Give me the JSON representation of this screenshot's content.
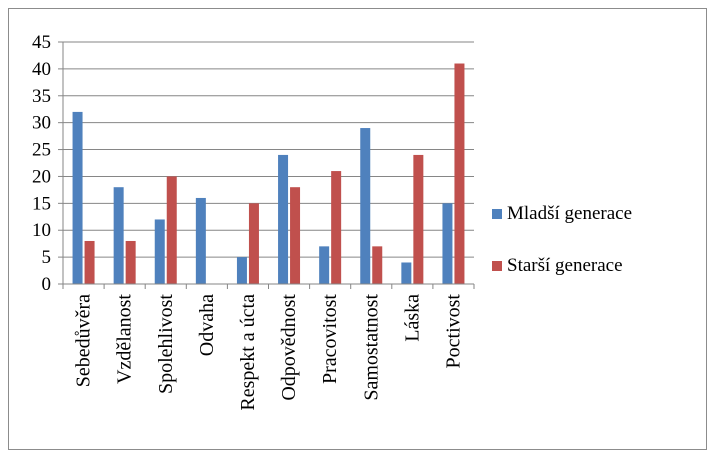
{
  "chart_data": {
    "type": "bar",
    "categories": [
      "Sebedůvěra",
      "Vzdělanost",
      "Spolehlivost",
      "Odvaha",
      "Respekt a úcta",
      "Odpovědnost",
      "Pracovitost",
      "Samostatnost",
      "Láska",
      "Poctivost"
    ],
    "series": [
      {
        "name": "Mladší generace",
        "color": "#4f81bd",
        "values": [
          32,
          18,
          12,
          16,
          5,
          24,
          7,
          29,
          4,
          15
        ]
      },
      {
        "name": "Starší generace",
        "color": "#c0504d",
        "values": [
          8,
          8,
          20,
          0,
          15,
          18,
          21,
          7,
          24,
          41
        ]
      }
    ],
    "yticks": [
      0,
      5,
      10,
      15,
      20,
      25,
      30,
      35,
      40,
      45
    ],
    "ylim": [
      0,
      45
    ],
    "grid": true,
    "legend_position": "right"
  }
}
